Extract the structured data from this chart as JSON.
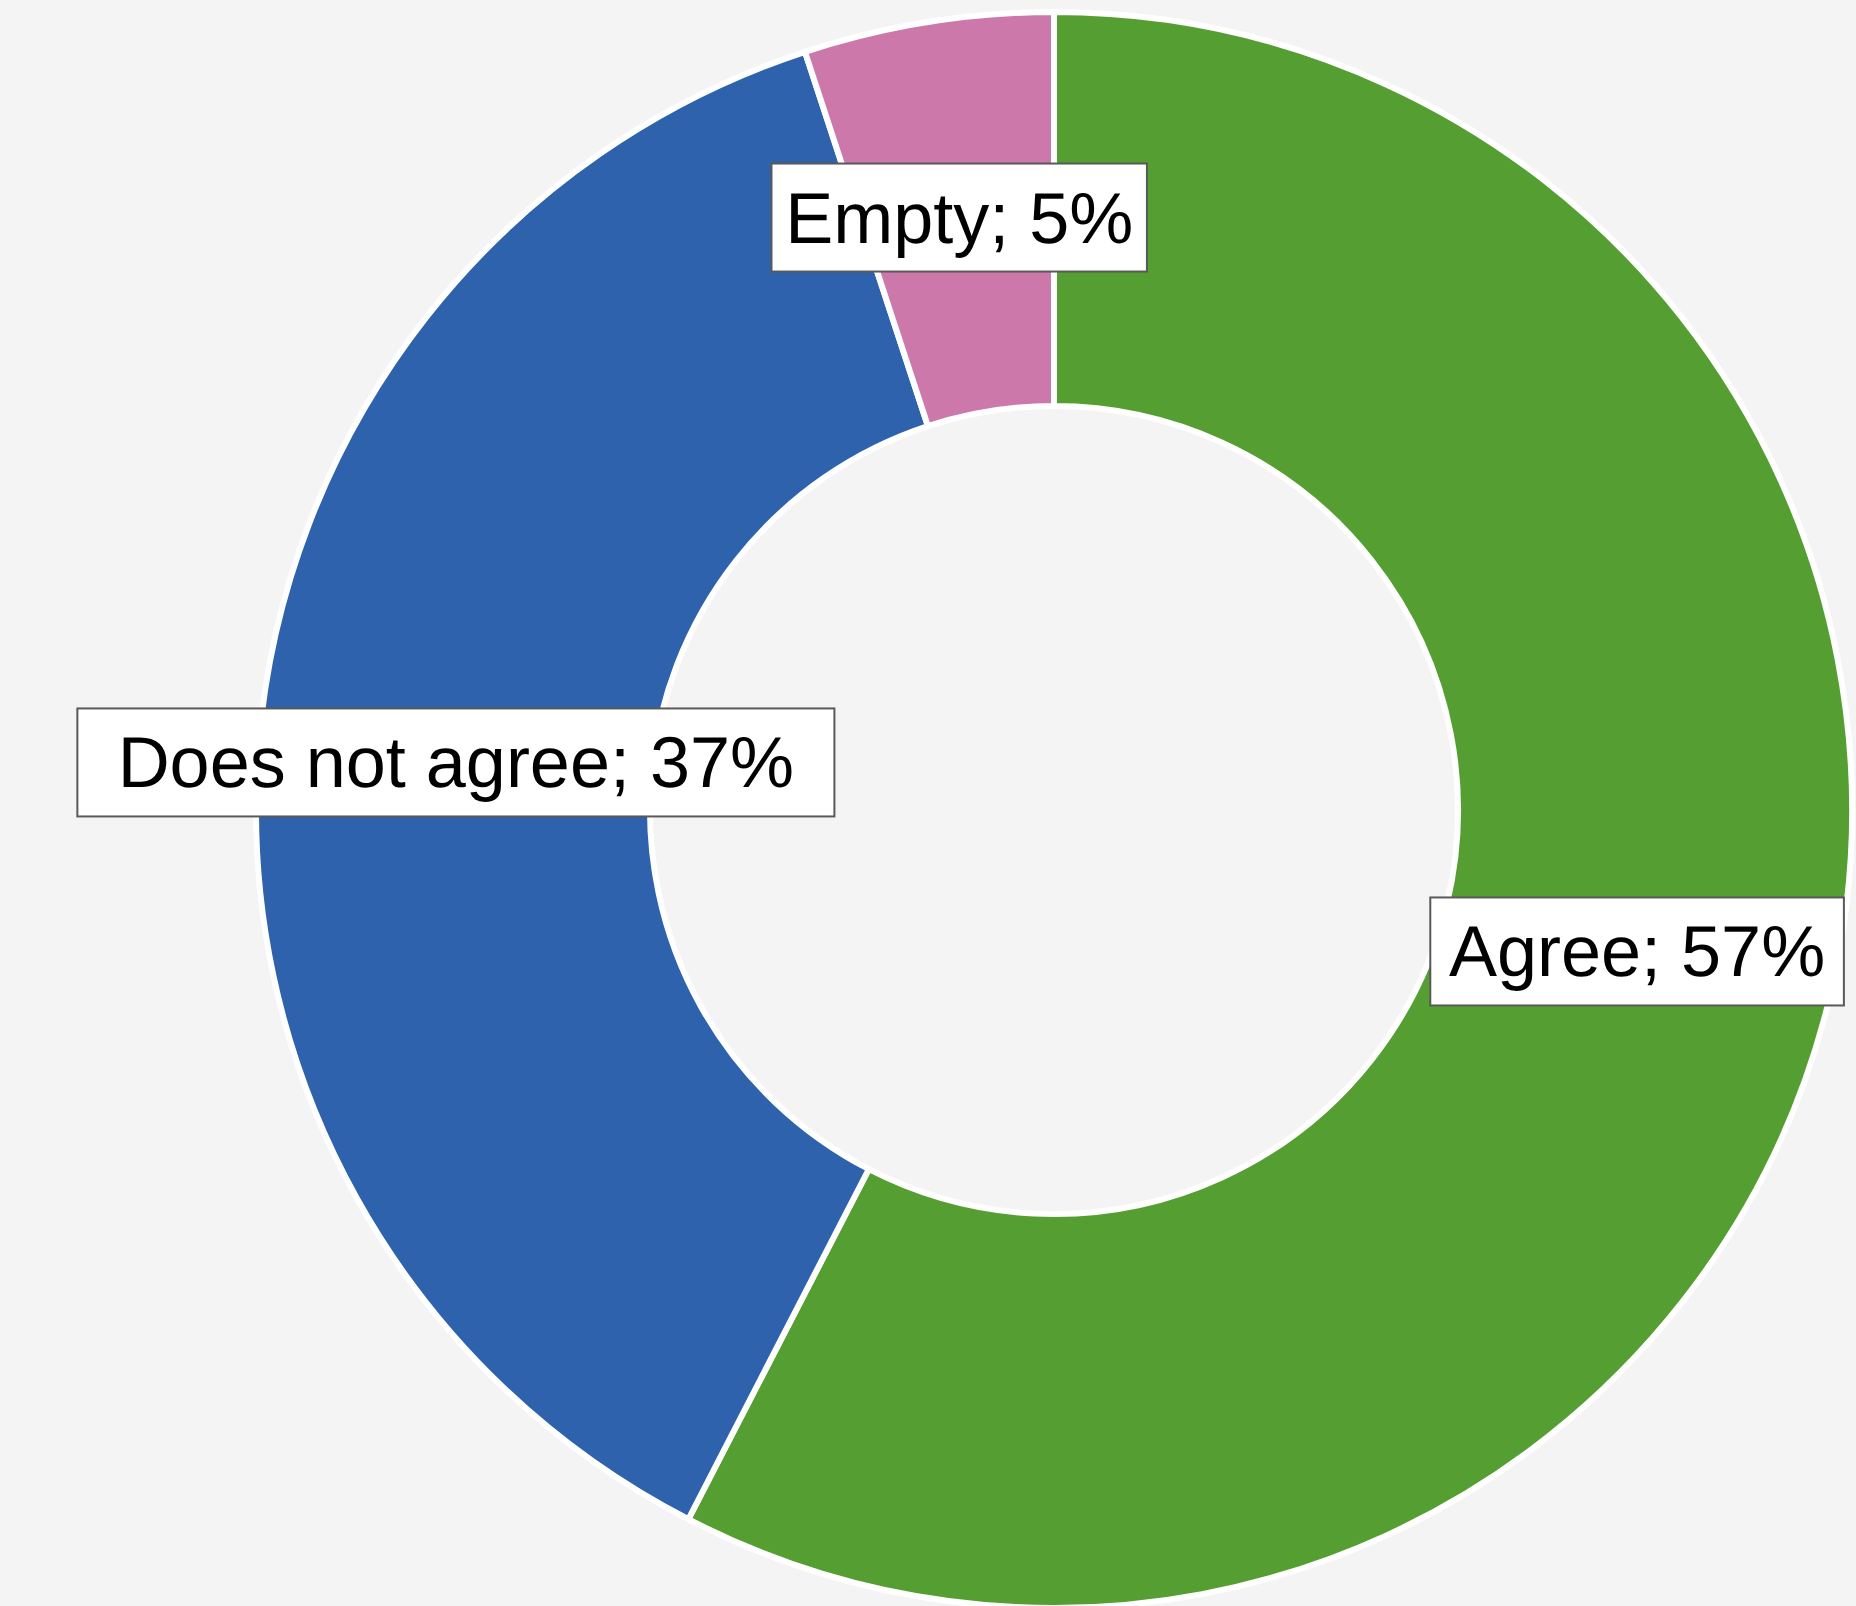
{
  "chart_data": {
    "type": "donut",
    "categories": [
      "Agree",
      "Does not agree",
      "Empty"
    ],
    "values": [
      57,
      37,
      5
    ],
    "colors": [
      "#549e32",
      "#2e62ad",
      "#cc78ab"
    ],
    "value_labels": [
      "57%",
      "37%",
      "5%"
    ]
  }
}
